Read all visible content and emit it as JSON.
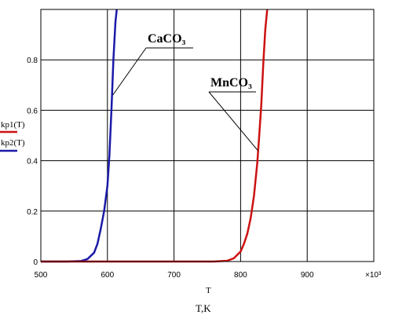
{
  "chart_data": {
    "type": "line",
    "title": "",
    "xlabel": "T",
    "caption": "T,K",
    "x_multiplier": "×10³",
    "xlim": [
      500,
      1000
    ],
    "ylim": [
      0,
      1
    ],
    "x_ticks": [
      500,
      600,
      700,
      800,
      900
    ],
    "x_tick_labels": [
      "500",
      "600",
      "700",
      "800",
      "900"
    ],
    "y_ticks": [
      0,
      0.2,
      0.4,
      0.6,
      0.8
    ],
    "y_tick_labels": [
      "0",
      "0.2",
      "0.4",
      "0.6",
      "0.8"
    ],
    "grid": true,
    "legend_position": "left",
    "series": [
      {
        "name": "kp2(T)",
        "color": "#1a1aa8",
        "x": [
          540,
          560,
          570,
          580,
          585,
          590,
          595,
          600,
          603,
          606,
          609,
          612,
          614
        ],
        "y": [
          0,
          0.002,
          0.01,
          0.035,
          0.07,
          0.13,
          0.2,
          0.3,
          0.42,
          0.6,
          0.8,
          0.95,
          1.0
        ]
      },
      {
        "name": "kp1(T)",
        "color": "#cc1111",
        "x": [
          760,
          780,
          790,
          800,
          805,
          810,
          815,
          820,
          825,
          828,
          831,
          834,
          837,
          840
        ],
        "y": [
          0,
          0.003,
          0.013,
          0.04,
          0.07,
          0.11,
          0.17,
          0.26,
          0.39,
          0.5,
          0.62,
          0.78,
          0.92,
          1.0
        ]
      }
    ],
    "annotations": [
      {
        "text": "CaCO₃",
        "target_x": 608,
        "target_y": 0.66
      },
      {
        "text": "MnCO₃",
        "target_x": 826,
        "target_y": 0.44
      }
    ]
  }
}
